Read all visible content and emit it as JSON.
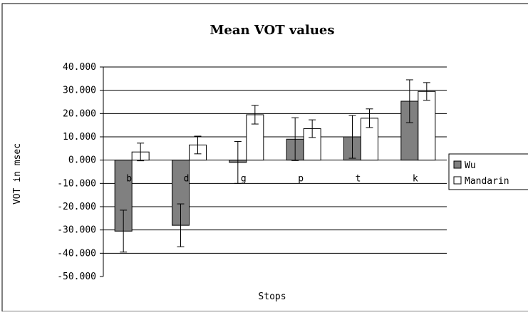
{
  "chart_data": {
    "type": "bar",
    "title": "Mean VOT values",
    "xlabel": "Stops",
    "ylabel": "VOT in msec",
    "categories": [
      "b",
      "d",
      "g",
      "p",
      "t",
      "k"
    ],
    "series": [
      {
        "name": "Wu",
        "values": [
          -30.5,
          -28.0,
          -1.0,
          9.0,
          10.0,
          25.3
        ],
        "errors": [
          9.0,
          9.2,
          9.0,
          9.2,
          9.2,
          9.2
        ],
        "color": "#808080"
      },
      {
        "name": "Mandarin",
        "values": [
          3.5,
          6.5,
          19.5,
          13.5,
          18.0,
          29.5
        ],
        "errors": [
          3.8,
          3.8,
          4.0,
          3.8,
          4.0,
          3.8
        ],
        "color": "#ffffff"
      }
    ],
    "ylim": [
      -50,
      40
    ],
    "yticks": [
      40,
      30,
      20,
      10,
      0,
      -10,
      -20,
      -30,
      -40,
      -50
    ],
    "ytick_labels": [
      "40.000",
      "30.000",
      "20.000",
      "10.000",
      "0.000",
      "-10.000",
      "-20.000",
      "-30.000",
      "-40.000",
      "-50.000"
    ],
    "grid": true,
    "legend_position": "right",
    "error_bars": true
  }
}
